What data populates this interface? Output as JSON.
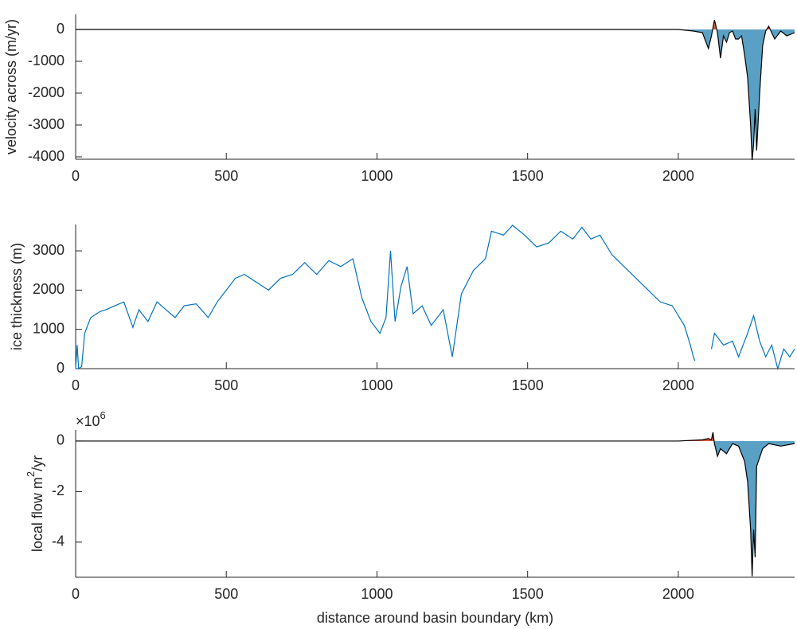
{
  "chart_data": [
    {
      "type": "area",
      "ylabel": "velocity across (m/yr)",
      "x": [
        0,
        2000,
        2050,
        2080,
        2100,
        2110,
        2120,
        2130,
        2140,
        2150,
        2160,
        2170,
        2180,
        2190,
        2200,
        2210,
        2220,
        2230,
        2240,
        2245,
        2250,
        2255,
        2260,
        2270,
        2280,
        2290,
        2300,
        2320,
        2340,
        2360,
        2386
      ],
      "values": [
        0,
        0,
        -50,
        -100,
        -600,
        -200,
        300,
        -100,
        -900,
        -200,
        -400,
        -100,
        -50,
        -300,
        -300,
        -200,
        -800,
        -1500,
        -3000,
        -4100,
        -3600,
        -2500,
        -3800,
        -2000,
        -500,
        -50,
        100,
        -300,
        -50,
        -200,
        -100
      ],
      "line_color": "#000000",
      "neg_color": "#5aa0c4",
      "pos_color": "#d9583b",
      "xlim": [
        0,
        2386
      ],
      "xticks": [
        0,
        500,
        1000,
        1500,
        2000
      ],
      "ylim": [
        -4075,
        475
      ],
      "yticks": [
        -4000,
        -3000,
        -2000,
        -1000,
        0
      ]
    },
    {
      "type": "line",
      "ylabel": "ice thickness (m)",
      "x": [
        0,
        5,
        10,
        20,
        30,
        50,
        80,
        100,
        130,
        160,
        190,
        210,
        240,
        270,
        300,
        330,
        360,
        400,
        440,
        470,
        500,
        530,
        560,
        600,
        640,
        680,
        720,
        760,
        800,
        840,
        880,
        920,
        950,
        980,
        1010,
        1030,
        1045,
        1060,
        1080,
        1100,
        1120,
        1150,
        1180,
        1220,
        1250,
        1280,
        1320,
        1360,
        1380,
        1420,
        1450,
        1490,
        1530,
        1570,
        1610,
        1650,
        1680,
        1710,
        1740,
        1780,
        1820,
        1860,
        1900,
        1940,
        1980,
        2020,
        2040,
        2050,
        2055,
        2080,
        2110,
        2120,
        2150,
        2180,
        2200,
        2230,
        2250,
        2270,
        2290,
        2310,
        2330,
        2350,
        2370,
        2386
      ],
      "values": [
        0,
        600,
        0,
        50,
        900,
        1300,
        1450,
        1500,
        1600,
        1700,
        1050,
        1500,
        1200,
        1700,
        1500,
        1300,
        1600,
        1650,
        1300,
        1700,
        2000,
        2300,
        2400,
        2200,
        2000,
        2300,
        2400,
        2700,
        2400,
        2750,
        2600,
        2800,
        1800,
        1200,
        900,
        1300,
        3000,
        1200,
        2100,
        2600,
        1400,
        1600,
        1100,
        1500,
        300,
        1900,
        2500,
        2800,
        3500,
        3400,
        3650,
        3400,
        3100,
        3200,
        3500,
        3300,
        3600,
        3300,
        3400,
        2900,
        2600,
        2300,
        2000,
        1700,
        1600,
        1100,
        600,
        300,
        200,
        null,
        500,
        900,
        600,
        700,
        300,
        900,
        1350,
        700,
        300,
        600,
        0,
        500,
        300,
        500
      ],
      "line_color": "#0072bd",
      "xlim": [
        0,
        2386
      ],
      "xticks": [
        0,
        500,
        1000,
        1500,
        2000
      ],
      "ylim": [
        0,
        3670
      ],
      "yticks": [
        0,
        1000,
        2000,
        3000
      ]
    },
    {
      "type": "area",
      "ylabel": "local flow m",
      "ylabel_sup": "2",
      "ylabel_tail": "/yr",
      "y_exponent": "×10",
      "y_exponent_power": "6",
      "xlabel": "distance around basin boundary (km)",
      "x": [
        0,
        2000,
        2080,
        2100,
        2110,
        2115,
        2120,
        2130,
        2140,
        2160,
        2180,
        2200,
        2220,
        2230,
        2240,
        2245,
        2250,
        2255,
        2260,
        2280,
        2300,
        2340,
        2386
      ],
      "values": [
        0,
        0,
        0.05,
        0.1,
        0.05,
        0.35,
        -0.1,
        -0.6,
        -0.3,
        -0.5,
        -0.1,
        -0.2,
        -0.8,
        -1.6,
        -3.5,
        -5.35,
        -3.5,
        -4.6,
        -1,
        -0.3,
        -0.1,
        -0.2,
        -0.1
      ],
      "line_color": "#000000",
      "neg_color": "#5aa0c4",
      "pos_color": "#d9583b",
      "xlim": [
        0,
        2386
      ],
      "xticks": [
        0,
        500,
        1000,
        1500,
        2000
      ],
      "ylim": [
        -5.39,
        0.44
      ],
      "yticks": [
        -4,
        -2,
        0
      ]
    }
  ]
}
